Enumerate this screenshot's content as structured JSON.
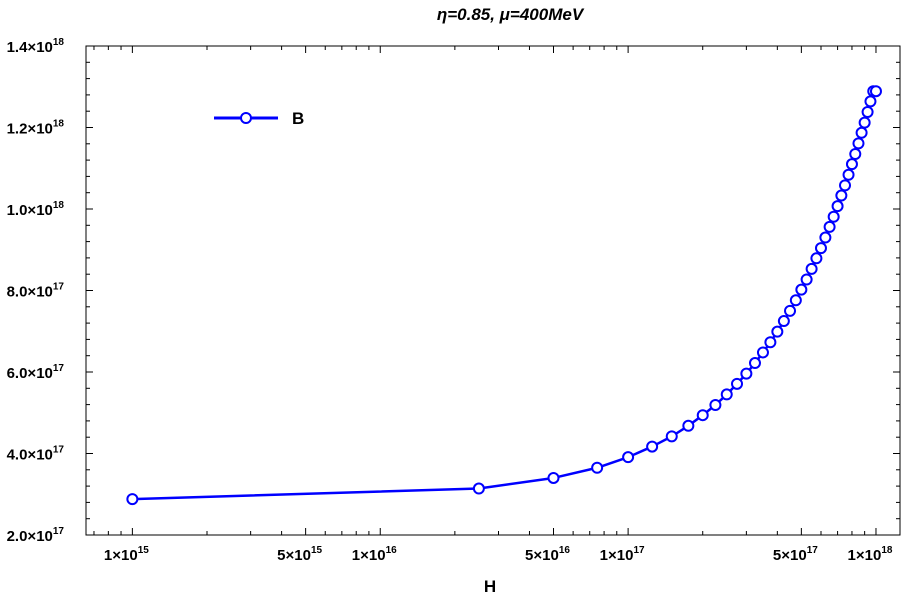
{
  "chart_data": {
    "type": "line",
    "title": "η=0.85, μ=400MeV",
    "xlabel": "H",
    "ylabel": "",
    "xscale": "log",
    "xlim": [
      650000000000000.0,
      1.25e+18
    ],
    "ylim": [
      2e+17,
      1.4e+18
    ],
    "grid": false,
    "legend": "top-left",
    "x_ticks": [
      {
        "value": 1000000000000000.0,
        "label": "1×10",
        "exp": "15"
      },
      {
        "value": 5000000000000000.0,
        "label": "5×10",
        "exp": "15"
      },
      {
        "value": 1e+16,
        "label": "1×10",
        "exp": "16"
      },
      {
        "value": 5e+16,
        "label": "5×10",
        "exp": "16"
      },
      {
        "value": 1e+17,
        "label": "1×10",
        "exp": "17"
      },
      {
        "value": 5e+17,
        "label": "5×10",
        "exp": "17"
      },
      {
        "value": 1e+18,
        "label": "1×10",
        "exp": "18"
      }
    ],
    "y_ticks": [
      {
        "value": 2e+17,
        "label": "2.0×10",
        "exp": "17"
      },
      {
        "value": 4e+17,
        "label": "4.0×10",
        "exp": "17"
      },
      {
        "value": 6e+17,
        "label": "6.0×10",
        "exp": "17"
      },
      {
        "value": 8e+17,
        "label": "8.0×10",
        "exp": "17"
      },
      {
        "value": 1e+18,
        "label": "1.0×10",
        "exp": "18"
      },
      {
        "value": 1.2e+18,
        "label": "1.2×10",
        "exp": "18"
      },
      {
        "value": 1.4e+18,
        "label": "1.4×10",
        "exp": "18"
      }
    ],
    "series": [
      {
        "name": "B",
        "color": "#0000ff",
        "marker": "open-circle",
        "x": [
          1000000000000000.0,
          2.5e+16,
          5e+16,
          7.5e+16,
          1e+17,
          1.25e+17,
          1.5e+17,
          1.75e+17,
          2e+17,
          2.25e+17,
          2.5e+17,
          2.75e+17,
          3e+17,
          3.25e+17,
          3.5e+17,
          3.75e+17,
          4e+17,
          4.25e+17,
          4.5e+17,
          4.75e+17,
          5e+17,
          5.25e+17,
          5.5e+17,
          5.75e+17,
          6e+17,
          6.25e+17,
          6.5e+17,
          6.75e+17,
          7e+17,
          7.25e+17,
          7.5e+17,
          7.75e+17,
          8e+17,
          8.25e+17,
          8.5e+17,
          8.75e+17,
          9e+17,
          9.25e+17,
          9.5e+17,
          9.75e+17,
          1e+18
        ],
        "y": [
          2.88e+17,
          3.14e+17,
          3.4e+17,
          3.65e+17,
          3.91e+17,
          4.17e+17,
          4.42e+17,
          4.68e+17,
          4.94e+17,
          5.19e+17,
          5.45e+17,
          5.71e+17,
          5.96e+17,
          6.22e+17,
          6.48e+17,
          6.73e+17,
          6.99e+17,
          7.25e+17,
          7.5e+17,
          7.76e+17,
          8.02e+17,
          8.27e+17,
          8.53e+17,
          8.79e+17,
          9.04e+17,
          9.3e+17,
          9.56e+17,
          9.81e+17,
          1.007e+18,
          1.033e+18,
          1.058e+18,
          1.084e+18,
          1.11e+18,
          1.135e+18,
          1.161e+18,
          1.187e+18,
          1.212e+18,
          1.238e+18,
          1.264e+18,
          1.289e+18,
          1.289e+18
        ]
      }
    ]
  }
}
